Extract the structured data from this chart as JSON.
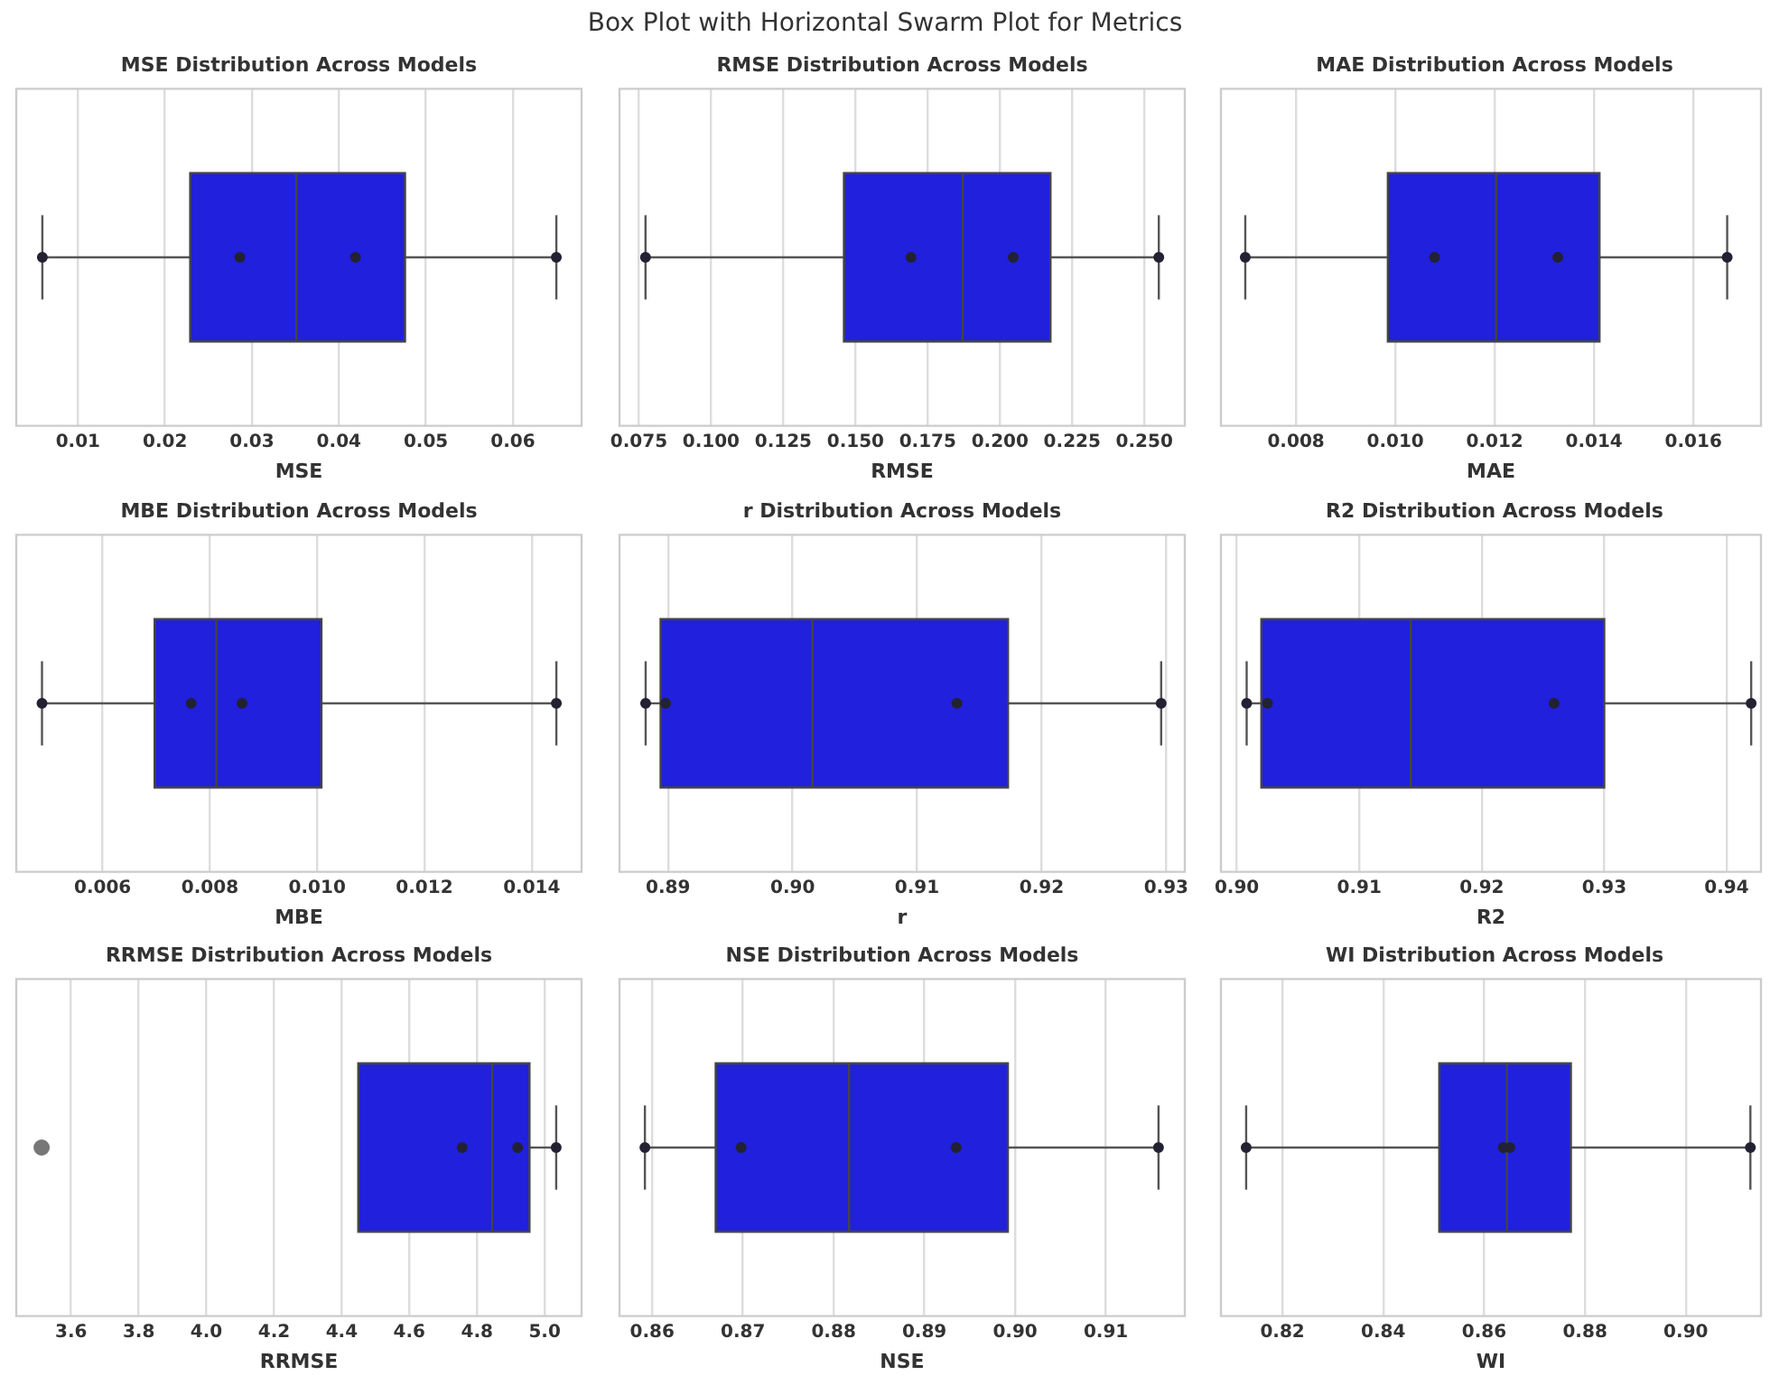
{
  "chart_data": [
    {
      "type": "other",
      "title": "Box Plot with Horizontal Swarm Plot for Metrics"
    },
    {
      "type": "box",
      "orientation": "horizontal",
      "title": "MSE Distribution Across Models",
      "xlabel": "MSE",
      "categories": [
        null
      ],
      "xlim": [
        0.0029,
        0.0679
      ],
      "xticks": [
        0.01,
        0.02,
        0.03,
        0.04,
        0.05,
        0.06
      ],
      "grid": "x",
      "tick_labels": "x",
      "marker": "circle",
      "series": [
        {
          "type": "box",
          "color": "#2020dd",
          "boxes": [
            {
              "low": 0.0059,
              "q1": 0.0229,
              "median": 0.0351,
              "q3": 0.0476,
              "high": 0.065
            }
          ]
        },
        {
          "type": "scatter",
          "color": "#222233",
          "x": [
            null,
            null,
            null,
            null
          ],
          "values": [
            0.0059,
            0.0286,
            0.0419,
            0.065
          ]
        }
      ]
    },
    {
      "type": "box",
      "orientation": "horizontal",
      "title": "RMSE Distribution Across Models",
      "xlabel": "RMSE",
      "categories": [
        null
      ],
      "xlim": [
        0.0683,
        0.264
      ],
      "xticks": [
        0.075,
        {
          "value": 0.1,
          "label": "0.100"
        },
        0.125,
        {
          "value": 0.15,
          "label": "0.150"
        },
        0.175,
        {
          "value": 0.2,
          "label": "0.200"
        },
        0.225,
        {
          "value": 0.25,
          "label": "0.250"
        }
      ],
      "grid": "x",
      "tick_labels": "x",
      "marker": "circle",
      "series": [
        {
          "type": "box",
          "color": "#2020dd",
          "boxes": [
            {
              "low": 0.0773,
              "q1": 0.146,
              "median": 0.1871,
              "q3": 0.2175,
              "high": 0.255
            }
          ]
        },
        {
          "type": "scatter",
          "color": "#222233",
          "x": [
            null,
            null,
            null,
            null
          ],
          "values": [
            0.0773,
            0.1692,
            0.2046,
            0.255
          ]
        }
      ]
    },
    {
      "type": "box",
      "orientation": "horizontal",
      "title": "MAE Distribution Across Models",
      "xlabel": "MAE",
      "categories": [
        null
      ],
      "xlim": [
        0.00649,
        0.01736
      ],
      "xticks": [
        0.008,
        {
          "value": 0.01,
          "label": "0.010"
        },
        0.012,
        0.014,
        0.016
      ],
      "grid": "x",
      "tick_labels": "x",
      "marker": "circle",
      "series": [
        {
          "type": "box",
          "color": "#2020dd",
          "boxes": [
            {
              "low": 0.00698,
              "q1": 0.00985,
              "median": 0.01203,
              "q3": 0.01411,
              "high": 0.01668
            }
          ]
        },
        {
          "type": "scatter",
          "color": "#222233",
          "x": [
            null,
            null,
            null,
            null
          ],
          "values": [
            0.00698,
            0.01079,
            0.01327,
            0.01668
          ]
        }
      ]
    },
    {
      "type": "box",
      "orientation": "horizontal",
      "title": "MBE Distribution Across Models",
      "xlabel": "MBE",
      "categories": [
        null
      ],
      "xlim": [
        0.00439,
        0.01493
      ],
      "xticks": [
        0.006,
        0.008,
        {
          "value": 0.01,
          "label": "0.010"
        },
        0.012,
        0.014
      ],
      "grid": "x",
      "tick_labels": "x",
      "marker": "circle",
      "series": [
        {
          "type": "box",
          "color": "#2020dd",
          "boxes": [
            {
              "low": 0.00487,
              "q1": 0.00697,
              "median": 0.00812,
              "q3": 0.01008,
              "high": 0.01446
            }
          ]
        },
        {
          "type": "scatter",
          "color": "#222233",
          "x": [
            null,
            null,
            null,
            null
          ],
          "values": [
            0.00487,
            0.00765,
            0.0086,
            0.01446
          ]
        }
      ]
    },
    {
      "type": "box",
      "orientation": "horizontal",
      "title": "r Distribution Across Models",
      "xlabel": "r",
      "categories": [
        null
      ],
      "xlim": [
        0.8861,
        0.9315
      ],
      "xticks": [
        0.89,
        {
          "value": 0.9,
          "label": "0.90"
        },
        0.91,
        0.92,
        0.93
      ],
      "grid": "x",
      "tick_labels": "x",
      "marker": "circle",
      "series": [
        {
          "type": "box",
          "color": "#2020dd",
          "boxes": [
            {
              "low": 0.8882,
              "q1": 0.8894,
              "median": 0.9016,
              "q3": 0.9173,
              "high": 0.9296
            }
          ]
        },
        {
          "type": "scatter",
          "color": "#222233",
          "x": [
            null,
            null,
            null,
            null
          ],
          "values": [
            0.8882,
            0.8898,
            0.9132,
            0.9296
          ]
        }
      ]
    },
    {
      "type": "box",
      "orientation": "horizontal",
      "title": "R2 Distribution Across Models",
      "xlabel": "R2",
      "categories": [
        null
      ],
      "xlim": [
        0.8987,
        0.9428
      ],
      "xticks": [
        {
          "value": 0.9,
          "label": "0.90"
        },
        0.91,
        0.92,
        0.93,
        0.94
      ],
      "grid": "x",
      "tick_labels": "x",
      "marker": "circle",
      "series": [
        {
          "type": "box",
          "color": "#2020dd",
          "boxes": [
            {
              "low": 0.9008,
              "q1": 0.902,
              "median": 0.9142,
              "q3": 0.93,
              "high": 0.942
            }
          ]
        },
        {
          "type": "scatter",
          "color": "#222233",
          "x": [
            null,
            null,
            null,
            null
          ],
          "values": [
            0.9008,
            0.9025,
            0.9259,
            0.942
          ]
        }
      ]
    },
    {
      "type": "box",
      "orientation": "horizontal",
      "title": "RRMSE Distribution Across Models",
      "xlabel": "RRMSE",
      "categories": [
        null
      ],
      "xlim": [
        3.438,
        5.109
      ],
      "xticks": [
        3.6,
        3.8,
        {
          "value": 4,
          "label": "4.0"
        },
        4.2,
        4.4,
        4.6,
        4.8,
        {
          "value": 5,
          "label": "5.0"
        }
      ],
      "grid": "x",
      "tick_labels": "x",
      "marker": "circle",
      "series": [
        {
          "type": "box",
          "color": "#2020dd",
          "boxes": [
            {
              "low": null,
              "q1": 4.449,
              "median": 4.845,
              "q3": 4.955,
              "high": 5.034,
              "outliers": [
                3.513
              ]
            }
          ]
        },
        {
          "type": "scatter",
          "color": "#222233",
          "x": [
            null,
            null,
            null
          ],
          "values": [
            4.756,
            4.92,
            5.034
          ]
        }
      ]
    },
    {
      "type": "box",
      "orientation": "horizontal",
      "title": "NSE Distribution Across Models",
      "xlabel": "NSE",
      "categories": [
        null
      ],
      "xlim": [
        0.8564,
        0.9187
      ],
      "xticks": [
        0.86,
        0.87,
        0.88,
        0.89,
        {
          "value": 0.9,
          "label": "0.90"
        },
        0.91
      ],
      "grid": "x",
      "tick_labels": "x",
      "marker": "circle",
      "series": [
        {
          "type": "box",
          "color": "#2020dd",
          "boxes": [
            {
              "low": 0.8592,
              "q1": 0.867,
              "median": 0.8817,
              "q3": 0.8992,
              "high": 0.9158
            }
          ]
        },
        {
          "type": "scatter",
          "color": "#222233",
          "x": [
            null,
            null,
            null,
            null
          ],
          "values": [
            0.8592,
            0.8698,
            0.8935,
            0.9158
          ]
        }
      ]
    },
    {
      "type": "box",
      "orientation": "horizontal",
      "title": "WI Distribution Across Models",
      "xlabel": "WI",
      "categories": [
        null
      ],
      "xlim": [
        0.8078,
        0.9149
      ],
      "xticks": [
        0.82,
        0.84,
        0.86,
        0.88,
        {
          "value": 0.9,
          "label": "0.90"
        }
      ],
      "grid": "x",
      "tick_labels": "x",
      "marker": "circle",
      "series": [
        {
          "type": "box",
          "color": "#2020dd",
          "boxes": [
            {
              "low": 0.8128,
              "q1": 0.8511,
              "median": 0.8645,
              "q3": 0.8772,
              "high": 0.9128
            }
          ]
        },
        {
          "type": "scatter",
          "color": "#222233",
          "x": [
            null,
            null,
            null,
            null
          ],
          "values": [
            0.8128,
            0.8638,
            0.8651,
            0.9128
          ]
        }
      ]
    }
  ]
}
